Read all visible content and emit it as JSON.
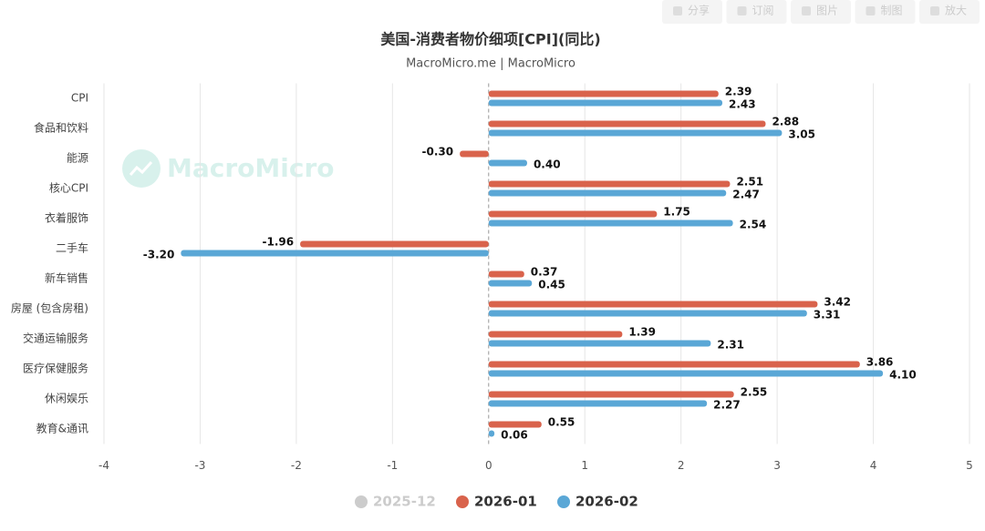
{
  "toolbar": [
    "分享",
    "订阅",
    "图片",
    "制图",
    "放大"
  ],
  "watermark": "MacroMicro",
  "chart_data": {
    "type": "hbar",
    "title": "美国-消费者物价细项[CPI](同比)",
    "subtitle": "MacroMicro.me | MacroMicro",
    "categories": [
      "CPI",
      "食品和饮料",
      "能源",
      "核心CPI",
      "衣着服饰",
      "二手车",
      "新车销售",
      "房屋 (包含房租)",
      "交通运输服务",
      "医疗保健服务",
      "休闲娱乐",
      "教育&通讯"
    ],
    "series": [
      {
        "name": "2025-12",
        "color": "#cccccc",
        "hidden": true,
        "values": [
          null,
          null,
          null,
          null,
          null,
          null,
          null,
          null,
          null,
          null,
          null,
          null
        ]
      },
      {
        "name": "2026-01",
        "color": "#d9634c",
        "values": [
          2.39,
          2.88,
          -0.3,
          2.51,
          1.75,
          -1.96,
          0.37,
          3.42,
          1.39,
          3.86,
          2.55,
          0.55
        ],
        "value_labels": [
          "2.39",
          "2.88",
          "-0.30",
          "2.51",
          "1.75",
          "-1.96",
          "0.37",
          "3.42",
          "1.39",
          "3.86",
          "2.55",
          "0.55"
        ]
      },
      {
        "name": "2026-02",
        "color": "#5aa7d6",
        "values": [
          2.43,
          3.05,
          0.4,
          2.47,
          2.54,
          -3.2,
          0.45,
          3.31,
          2.31,
          4.1,
          2.27,
          0.06
        ],
        "value_labels": [
          "2.43",
          "3.05",
          "0.40",
          "2.47",
          "2.54",
          "-3.20",
          "0.45",
          "3.31",
          "2.31",
          "4.10",
          "2.27",
          "0.06"
        ]
      }
    ],
    "xlim": [
      -4,
      5
    ],
    "xticks": [
      -4,
      -3,
      -2,
      -1,
      0,
      1,
      2,
      3,
      4,
      5
    ],
    "grid": true,
    "legend": "bottom"
  }
}
